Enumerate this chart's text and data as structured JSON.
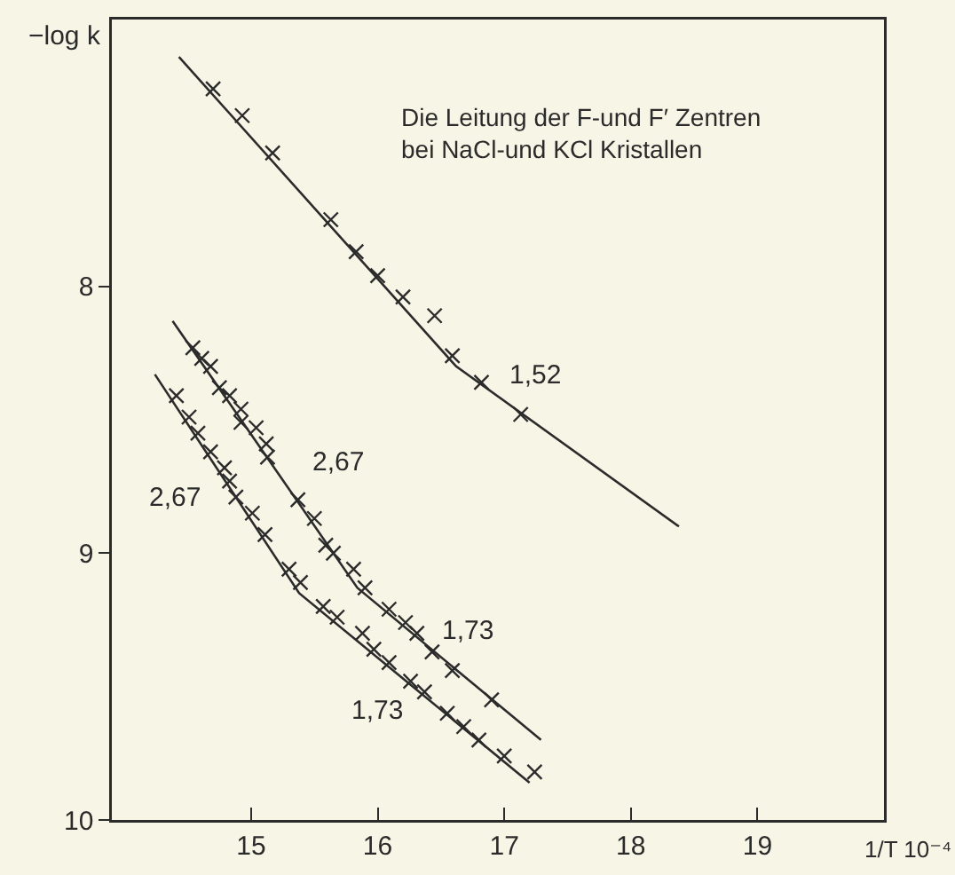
{
  "chart_data": {
    "type": "line",
    "title": "Die Leitung der F-und F′ Zentren bei NaCl-und KCl Kristallen",
    "xlabel": "1/T 10⁻⁴",
    "ylabel": "−log k",
    "xlim": [
      13.9,
      20
    ],
    "xticks": [
      15,
      16,
      17,
      18,
      19
    ],
    "ylim": [
      10,
      7
    ],
    "yticks": [
      8,
      9,
      10
    ],
    "grid": false,
    "series": [
      {
        "type": "line",
        "color": "#2b2b2b",
        "line_style": "solid",
        "marker": "none",
        "x": [
          14.43,
          16.62,
          18.38
        ],
        "values": [
          7.14,
          8.3,
          8.9
        ]
      },
      {
        "type": "line",
        "color": "#2b2b2b",
        "line_style": "solid",
        "marker": "none",
        "x": [
          14.38,
          15.84,
          17.29
        ],
        "values": [
          8.13,
          9.13,
          9.7
        ]
      },
      {
        "type": "line",
        "color": "#2b2b2b",
        "line_style": "solid",
        "marker": "none",
        "x": [
          14.24,
          15.38,
          17.2
        ],
        "values": [
          8.33,
          9.15,
          9.86
        ]
      },
      {
        "type": "scatter",
        "color": "#2b2b2b",
        "marker": "cross",
        "x": [
          14.7,
          14.93,
          15.17,
          15.63,
          15.83,
          16.0,
          16.2,
          16.45,
          16.59,
          16.82,
          17.13
        ],
        "values": [
          7.26,
          7.36,
          7.5,
          7.75,
          7.87,
          7.96,
          8.04,
          8.11,
          8.26,
          8.36,
          8.48
        ]
      },
      {
        "type": "scatter",
        "color": "#2b2b2b",
        "marker": "cross",
        "x": [
          14.54,
          14.61,
          14.68,
          14.75,
          14.83,
          14.92,
          14.92,
          15.04,
          15.12,
          15.13,
          15.37,
          15.5,
          15.59,
          15.65,
          15.81,
          15.9,
          16.09,
          16.22,
          16.31,
          16.43,
          16.59,
          16.9
        ],
        "values": [
          8.23,
          8.27,
          8.3,
          8.38,
          8.41,
          8.46,
          8.51,
          8.53,
          8.59,
          8.64,
          8.8,
          8.87,
          8.97,
          9.0,
          9.06,
          9.13,
          9.21,
          9.26,
          9.3,
          9.37,
          9.44,
          9.55
        ]
      },
      {
        "type": "scatter",
        "color": "#2b2b2b",
        "marker": "cross",
        "x": [
          14.41,
          14.51,
          14.58,
          14.68,
          14.79,
          14.83,
          14.88,
          15.01,
          15.11,
          15.3,
          15.39,
          15.57,
          15.68,
          15.88,
          15.97,
          16.09,
          16.26,
          16.37,
          16.55,
          16.68,
          16.8,
          17.0,
          17.24
        ],
        "values": [
          8.41,
          8.49,
          8.55,
          8.62,
          8.68,
          8.73,
          8.79,
          8.85,
          8.93,
          9.06,
          9.11,
          9.2,
          9.24,
          9.3,
          9.36,
          9.41,
          9.48,
          9.52,
          9.6,
          9.65,
          9.7,
          9.76,
          9.82
        ]
      }
    ],
    "annotations": [
      {
        "text": "1,52",
        "x": 17.25,
        "y": 8.51
      },
      {
        "text": "2,67",
        "x": 15.15,
        "y": 8.66
      },
      {
        "text": "1,73",
        "x": 16.71,
        "y": 9.47
      },
      {
        "text": "2,67",
        "x": 14.88,
        "y": 8.79
      },
      {
        "text": "1,73",
        "x": 15.99,
        "y": 9.39
      }
    ]
  }
}
